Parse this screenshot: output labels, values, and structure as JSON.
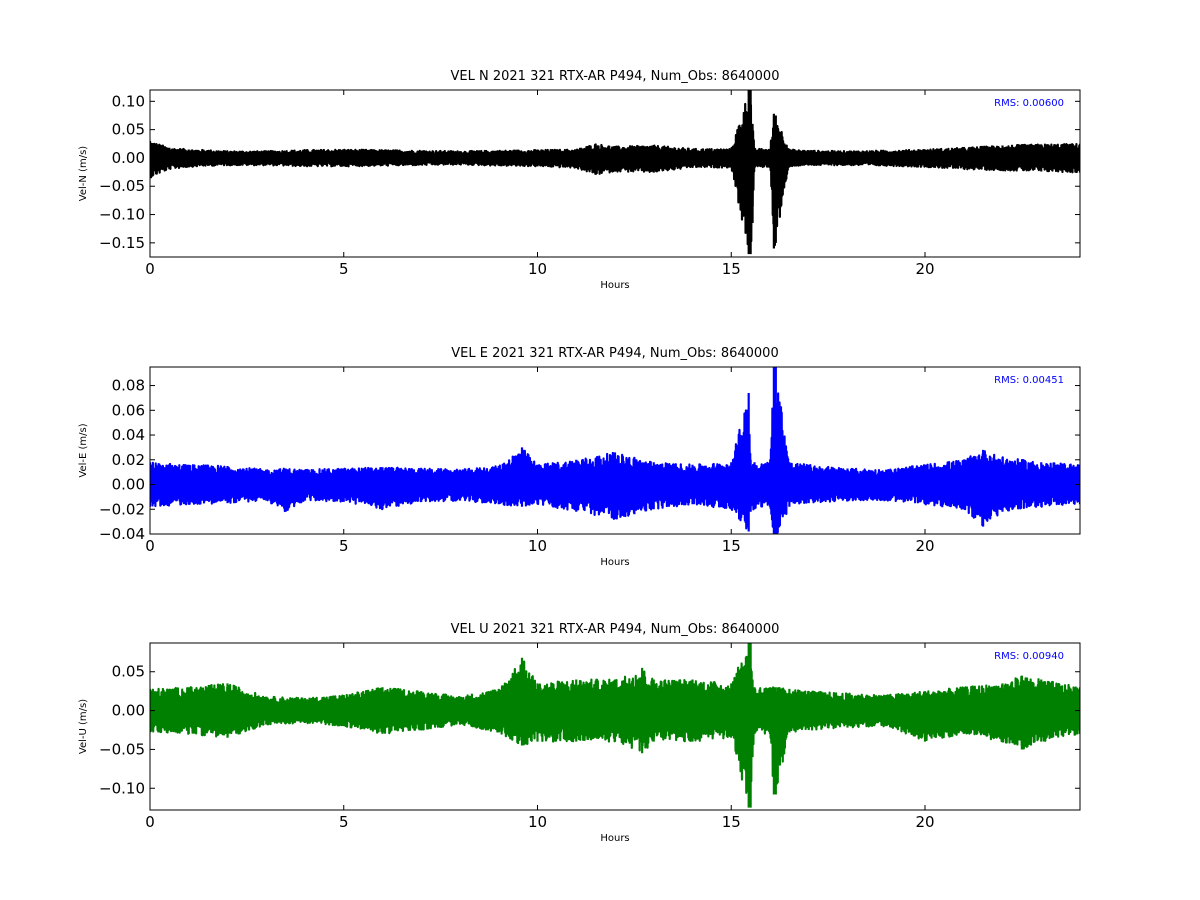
{
  "chart_data": [
    {
      "type": "line",
      "title": "VEL N 2021 321 RTX-AR  P494, Num_Obs: 8640000",
      "xlabel": "Hours",
      "ylabel": "Vel-N (m/s)",
      "xlim": [
        0,
        24
      ],
      "ylim": [
        -0.175,
        0.12
      ],
      "xticks": [
        0,
        5,
        10,
        15,
        20
      ],
      "xtick_labels": [
        "0",
        "5",
        "10",
        "15",
        "20"
      ],
      "yticks": [
        -0.15,
        -0.1,
        -0.05,
        0.0,
        0.05,
        0.1
      ],
      "ytick_labels": [
        "−0.15",
        "−0.10",
        "−0.05",
        "0.00",
        "0.05",
        "0.10"
      ],
      "grid": false,
      "color": "#000000",
      "annotation": {
        "label": "RMS:",
        "value": "0.00600",
        "color": "#0000ff",
        "position": "top-right"
      },
      "series": [
        {
          "x": [
            0,
            0.5,
            1,
            1.5,
            2,
            3,
            4,
            5,
            6,
            7,
            8,
            9,
            10,
            11,
            11.5,
            12,
            13,
            14,
            15,
            15.45,
            15.5,
            15.55,
            15.6,
            16,
            16.1,
            16.15,
            16.5,
            17,
            18,
            19,
            20,
            21,
            22,
            23,
            24
          ],
          "upper": [
            0.03,
            0.018,
            0.015,
            0.014,
            0.012,
            0.012,
            0.014,
            0.015,
            0.014,
            0.013,
            0.012,
            0.013,
            0.014,
            0.015,
            0.025,
            0.02,
            0.022,
            0.016,
            0.016,
            0.12,
            0.12,
            0.06,
            0.016,
            0.016,
            0.078,
            0.075,
            0.015,
            0.013,
            0.012,
            0.013,
            0.015,
            0.018,
            0.022,
            0.024,
            0.025
          ],
          "lower": [
            -0.035,
            -0.02,
            -0.016,
            -0.014,
            -0.013,
            -0.013,
            -0.015,
            -0.015,
            -0.014,
            -0.013,
            -0.012,
            -0.014,
            -0.015,
            -0.018,
            -0.03,
            -0.024,
            -0.026,
            -0.017,
            -0.017,
            -0.17,
            -0.17,
            -0.115,
            -0.017,
            -0.016,
            -0.16,
            -0.15,
            -0.015,
            -0.013,
            -0.013,
            -0.014,
            -0.016,
            -0.02,
            -0.022,
            -0.024,
            -0.026
          ]
        }
      ]
    },
    {
      "type": "line",
      "title": "VEL E 2021 321 RTX-AR  P494, Num_Obs: 8640000",
      "xlabel": "Hours",
      "ylabel": "Vel-E (m/s)",
      "xlim": [
        0,
        24
      ],
      "ylim": [
        -0.04,
        0.095
      ],
      "xticks": [
        0,
        5,
        10,
        15,
        20
      ],
      "xtick_labels": [
        "0",
        "5",
        "10",
        "15",
        "20"
      ],
      "yticks": [
        -0.04,
        -0.02,
        0.0,
        0.02,
        0.04,
        0.06,
        0.08
      ],
      "ytick_labels": [
        "−0.04",
        "−0.02",
        "0.00",
        "0.02",
        "0.04",
        "0.06",
        "0.08"
      ],
      "grid": false,
      "color": "#0000ff",
      "annotation": {
        "label": "RMS:",
        "value": "0.00451",
        "color": "#0000ff",
        "position": "top-right"
      },
      "series": [
        {
          "x": [
            0,
            1,
            2,
            3,
            3.5,
            4,
            5,
            6,
            7,
            8,
            9,
            9.6,
            10,
            11,
            12,
            12.5,
            13,
            14,
            15,
            15.45,
            15.5,
            15.6,
            16,
            16.1,
            16.15,
            16.5,
            17,
            18,
            19,
            20,
            21,
            21.5,
            22,
            23,
            24
          ],
          "upper": [
            0.018,
            0.016,
            0.015,
            0.012,
            0.013,
            0.012,
            0.013,
            0.014,
            0.013,
            0.012,
            0.015,
            0.03,
            0.016,
            0.02,
            0.026,
            0.022,
            0.018,
            0.016,
            0.018,
            0.074,
            0.02,
            0.018,
            0.018,
            0.095,
            0.095,
            0.018,
            0.016,
            0.013,
            0.012,
            0.016,
            0.02,
            0.028,
            0.022,
            0.018,
            0.016
          ],
          "lower": [
            -0.018,
            -0.016,
            -0.015,
            -0.013,
            -0.022,
            -0.013,
            -0.014,
            -0.02,
            -0.014,
            -0.013,
            -0.016,
            -0.018,
            -0.016,
            -0.022,
            -0.028,
            -0.024,
            -0.02,
            -0.016,
            -0.02,
            -0.038,
            -0.022,
            -0.02,
            -0.018,
            -0.045,
            -0.045,
            -0.018,
            -0.015,
            -0.013,
            -0.013,
            -0.016,
            -0.02,
            -0.034,
            -0.022,
            -0.018,
            -0.016
          ]
        }
      ]
    },
    {
      "type": "line",
      "title": "VEL U 2021 321 RTX-AR  P494, Num_Obs: 8640000",
      "xlabel": "Hours",
      "ylabel": "Vel-U (m/s)",
      "xlim": [
        0,
        24
      ],
      "ylim": [
        -0.128,
        0.087
      ],
      "xticks": [
        0,
        5,
        10,
        15,
        20
      ],
      "xtick_labels": [
        "0",
        "5",
        "10",
        "15",
        "20"
      ],
      "yticks": [
        -0.1,
        -0.05,
        0.0,
        0.05
      ],
      "ytick_labels": [
        "−0.10",
        "−0.05",
        "0.00",
        "0.05"
      ],
      "grid": false,
      "color": "#008000",
      "annotation": {
        "label": "RMS:",
        "value": "0.00940",
        "color": "#0000ff",
        "position": "top-right"
      },
      "series": [
        {
          "x": [
            0,
            1,
            2,
            3,
            4,
            5,
            6,
            7,
            8,
            9,
            9.6,
            10,
            11,
            12,
            12.7,
            13,
            14,
            15,
            15.45,
            15.5,
            15.55,
            15.6,
            16,
            16.1,
            16.15,
            16.5,
            17,
            18,
            19,
            20,
            21,
            22,
            22.5,
            23,
            24
          ],
          "upper": [
            0.028,
            0.03,
            0.035,
            0.018,
            0.016,
            0.02,
            0.03,
            0.025,
            0.018,
            0.028,
            0.068,
            0.035,
            0.04,
            0.04,
            0.055,
            0.04,
            0.04,
            0.035,
            0.087,
            0.087,
            0.04,
            0.03,
            0.03,
            0.03,
            0.03,
            0.028,
            0.025,
            0.022,
            0.02,
            0.025,
            0.03,
            0.035,
            0.045,
            0.04,
            0.03
          ],
          "lower": [
            -0.028,
            -0.03,
            -0.035,
            -0.018,
            -0.016,
            -0.02,
            -0.03,
            -0.025,
            -0.018,
            -0.028,
            -0.045,
            -0.04,
            -0.04,
            -0.04,
            -0.055,
            -0.04,
            -0.04,
            -0.035,
            -0.125,
            -0.125,
            -0.06,
            -0.03,
            -0.03,
            -0.108,
            -0.108,
            -0.028,
            -0.025,
            -0.022,
            -0.02,
            -0.04,
            -0.03,
            -0.04,
            -0.05,
            -0.04,
            -0.03
          ]
        }
      ]
    }
  ]
}
